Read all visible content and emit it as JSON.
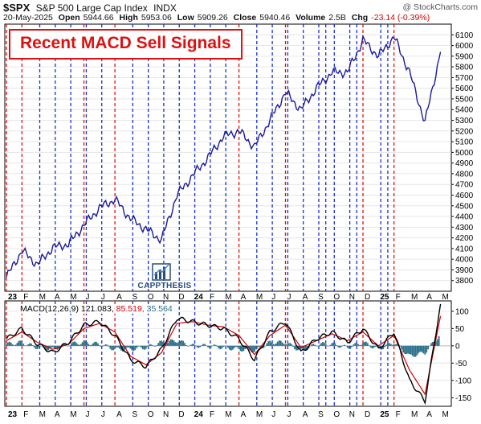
{
  "header": {
    "symbol": "$SPX",
    "name": "S&P 500 Large Cap Index",
    "exchange": "INDX",
    "date": "20-May-2025",
    "open_label": "Open",
    "open": "5944.66",
    "high_label": "High",
    "high": "5953.06",
    "low_label": "Low",
    "low": "5909.26",
    "close_label": "Close",
    "close": "5940.46",
    "volume_label": "Volume",
    "volume": "2.5B",
    "chg_label": "Chg",
    "chg": "-23.14 (-0.39%)",
    "watermark": "@ StockCharts.com"
  },
  "banner": {
    "text": "Recent MACD Sell Signals"
  },
  "logo": {
    "text": "CAPPTHESIS",
    "icon": "bar-chart-icon"
  },
  "macd_label": {
    "prefix": "MACD(12,26,9)",
    "macd": "121.083,",
    "signal": "85.519,",
    "hist": "35.564"
  },
  "colors": {
    "price": "#1a1a9a",
    "red_line": "#e01010",
    "blue_line": "#1a2fd0",
    "macd": "#000000",
    "signal": "#d00000",
    "histogram": "#2a6f8a"
  },
  "chart_data": [
    {
      "type": "line",
      "title": "$SPX",
      "ylim": [
        3700,
        6200
      ],
      "y_ticks": [
        "3800",
        "3900",
        "4000",
        "4100",
        "4200",
        "4300",
        "4400",
        "4500",
        "4600",
        "4700",
        "4800",
        "4900",
        "5000",
        "5100",
        "5200",
        "5300",
        "5400",
        "5500",
        "5600",
        "5700",
        "5800",
        "5900",
        "6000",
        "6100"
      ],
      "x_labels": [
        "23",
        "F",
        "M",
        "A",
        "M",
        "J",
        "J",
        "A",
        "S",
        "O",
        "N",
        "D",
        "24",
        "F",
        "M",
        "A",
        "M",
        "J",
        "J",
        "A",
        "S",
        "O",
        "N",
        "D",
        "25",
        "F",
        "M",
        "A",
        "M"
      ],
      "bold_x_labels": [
        "23",
        "24",
        "25"
      ],
      "x": [
        "Jan-23",
        "Feb-23",
        "Mar-23",
        "Apr-23",
        "May-23",
        "Jun-23",
        "Jul-23",
        "Aug-23",
        "Sep-23",
        "Oct-23",
        "Nov-23",
        "Dec-23",
        "Jan-24",
        "Feb-24",
        "Mar-24",
        "Apr-24",
        "May-24",
        "Jun-24",
        "Jul-24",
        "Aug-24",
        "Sep-24",
        "Oct-24",
        "Nov-24",
        "Dec-24",
        "Jan-25",
        "Feb-25",
        "Mar-25",
        "Apr-25",
        "May-25"
      ],
      "series": [
        {
          "values": [
            3830,
            4080,
            3950,
            4110,
            4140,
            4320,
            4480,
            4560,
            4380,
            4280,
            4180,
            4600,
            4780,
            4950,
            5150,
            5200,
            5050,
            5300,
            5560,
            5400,
            5600,
            5750,
            5750,
            6050,
            5900,
            6080,
            5750,
            5280,
            5940
          ]
        }
      ],
      "sell_signals_red": [
        "Jan-23",
        "Feb-23",
        "Jun-23",
        "Aug-23",
        "Apr-24",
        "Jul-24",
        "Dec-24",
        "Feb-25"
      ],
      "signals_blue": [
        "Mar-23",
        "Apr-23",
        "May-23",
        "Jun-23",
        "Jul-23",
        "Sep-23",
        "Oct-23",
        "Nov-23",
        "Dec-23",
        "Jan-24",
        "Feb-24",
        "Mar-24",
        "May-24",
        "Jun-24",
        "Jul-24",
        "Aug-24",
        "Sep-24",
        "Sep-24",
        "Oct-24",
        "Nov-24",
        "Nov-24",
        "Jan-25",
        "Jan-25"
      ]
    },
    {
      "type": "line",
      "title": "MACD(12,26,9)",
      "ylim": [
        -175,
        130
      ],
      "y_ticks": [
        "-150",
        "-100",
        "-50",
        "0",
        "50",
        "100"
      ],
      "x": [
        "Jan-23",
        "Feb-23",
        "Mar-23",
        "Apr-23",
        "May-23",
        "Jun-23",
        "Jul-23",
        "Aug-23",
        "Sep-23",
        "Oct-23",
        "Nov-23",
        "Dec-23",
        "Jan-24",
        "Feb-24",
        "Mar-24",
        "Apr-24",
        "May-24",
        "Jun-24",
        "Jul-24",
        "Aug-24",
        "Sep-24",
        "Oct-24",
        "Nov-24",
        "Dec-24",
        "Jan-25",
        "Feb-25",
        "Mar-25",
        "Apr-25",
        "May-25"
      ],
      "series": [
        {
          "name": "MACD",
          "values": [
            20,
            50,
            5,
            -20,
            10,
            60,
            70,
            30,
            -40,
            -60,
            -10,
            80,
            70,
            60,
            50,
            20,
            -40,
            40,
            70,
            -20,
            20,
            40,
            10,
            50,
            -10,
            40,
            -100,
            -160,
            121
          ]
        },
        {
          "name": "Signal",
          "values": [
            15,
            40,
            10,
            -10,
            5,
            50,
            65,
            40,
            -30,
            -55,
            -20,
            65,
            70,
            60,
            55,
            30,
            -25,
            30,
            60,
            -5,
            15,
            35,
            15,
            40,
            0,
            30,
            -70,
            -140,
            86
          ]
        }
      ]
    }
  ]
}
